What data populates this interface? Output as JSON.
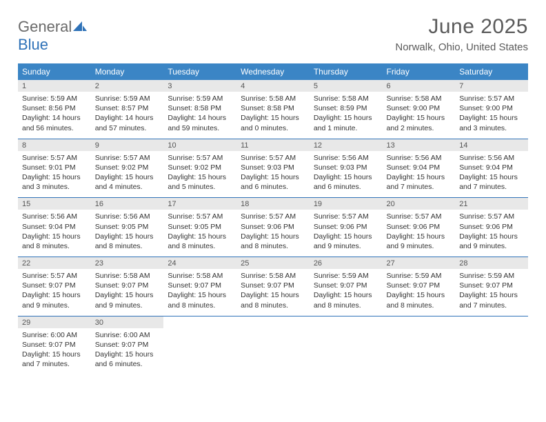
{
  "brand": {
    "part1": "General",
    "part2": "Blue"
  },
  "title": "June 2025",
  "location": "Norwalk, Ohio, United States",
  "colors": {
    "header_bg": "#3b85c5",
    "header_text": "#ffffff",
    "daynum_bg": "#e8e8e8",
    "sep": "#2f72b8",
    "brand_gray": "#6a6a6a",
    "brand_blue": "#2f72b8"
  },
  "typography": {
    "title_fontsize": 30,
    "location_fontsize": 15,
    "dayheader_fontsize": 12,
    "daynum_fontsize": 11,
    "detail_fontsize": 10.5
  },
  "day_headers": [
    "Sunday",
    "Monday",
    "Tuesday",
    "Wednesday",
    "Thursday",
    "Friday",
    "Saturday"
  ],
  "weeks": [
    [
      {
        "n": "1",
        "sr": "5:59 AM",
        "ss": "8:56 PM",
        "dl": "14 hours and 56 minutes."
      },
      {
        "n": "2",
        "sr": "5:59 AM",
        "ss": "8:57 PM",
        "dl": "14 hours and 57 minutes."
      },
      {
        "n": "3",
        "sr": "5:59 AM",
        "ss": "8:58 PM",
        "dl": "14 hours and 59 minutes."
      },
      {
        "n": "4",
        "sr": "5:58 AM",
        "ss": "8:58 PM",
        "dl": "15 hours and 0 minutes."
      },
      {
        "n": "5",
        "sr": "5:58 AM",
        "ss": "8:59 PM",
        "dl": "15 hours and 1 minute."
      },
      {
        "n": "6",
        "sr": "5:58 AM",
        "ss": "9:00 PM",
        "dl": "15 hours and 2 minutes."
      },
      {
        "n": "7",
        "sr": "5:57 AM",
        "ss": "9:00 PM",
        "dl": "15 hours and 3 minutes."
      }
    ],
    [
      {
        "n": "8",
        "sr": "5:57 AM",
        "ss": "9:01 PM",
        "dl": "15 hours and 3 minutes."
      },
      {
        "n": "9",
        "sr": "5:57 AM",
        "ss": "9:02 PM",
        "dl": "15 hours and 4 minutes."
      },
      {
        "n": "10",
        "sr": "5:57 AM",
        "ss": "9:02 PM",
        "dl": "15 hours and 5 minutes."
      },
      {
        "n": "11",
        "sr": "5:57 AM",
        "ss": "9:03 PM",
        "dl": "15 hours and 6 minutes."
      },
      {
        "n": "12",
        "sr": "5:56 AM",
        "ss": "9:03 PM",
        "dl": "15 hours and 6 minutes."
      },
      {
        "n": "13",
        "sr": "5:56 AM",
        "ss": "9:04 PM",
        "dl": "15 hours and 7 minutes."
      },
      {
        "n": "14",
        "sr": "5:56 AM",
        "ss": "9:04 PM",
        "dl": "15 hours and 7 minutes."
      }
    ],
    [
      {
        "n": "15",
        "sr": "5:56 AM",
        "ss": "9:04 PM",
        "dl": "15 hours and 8 minutes."
      },
      {
        "n": "16",
        "sr": "5:56 AM",
        "ss": "9:05 PM",
        "dl": "15 hours and 8 minutes."
      },
      {
        "n": "17",
        "sr": "5:57 AM",
        "ss": "9:05 PM",
        "dl": "15 hours and 8 minutes."
      },
      {
        "n": "18",
        "sr": "5:57 AM",
        "ss": "9:06 PM",
        "dl": "15 hours and 8 minutes."
      },
      {
        "n": "19",
        "sr": "5:57 AM",
        "ss": "9:06 PM",
        "dl": "15 hours and 9 minutes."
      },
      {
        "n": "20",
        "sr": "5:57 AM",
        "ss": "9:06 PM",
        "dl": "15 hours and 9 minutes."
      },
      {
        "n": "21",
        "sr": "5:57 AM",
        "ss": "9:06 PM",
        "dl": "15 hours and 9 minutes."
      }
    ],
    [
      {
        "n": "22",
        "sr": "5:57 AM",
        "ss": "9:07 PM",
        "dl": "15 hours and 9 minutes."
      },
      {
        "n": "23",
        "sr": "5:58 AM",
        "ss": "9:07 PM",
        "dl": "15 hours and 9 minutes."
      },
      {
        "n": "24",
        "sr": "5:58 AM",
        "ss": "9:07 PM",
        "dl": "15 hours and 8 minutes."
      },
      {
        "n": "25",
        "sr": "5:58 AM",
        "ss": "9:07 PM",
        "dl": "15 hours and 8 minutes."
      },
      {
        "n": "26",
        "sr": "5:59 AM",
        "ss": "9:07 PM",
        "dl": "15 hours and 8 minutes."
      },
      {
        "n": "27",
        "sr": "5:59 AM",
        "ss": "9:07 PM",
        "dl": "15 hours and 8 minutes."
      },
      {
        "n": "28",
        "sr": "5:59 AM",
        "ss": "9:07 PM",
        "dl": "15 hours and 7 minutes."
      }
    ],
    [
      {
        "n": "29",
        "sr": "6:00 AM",
        "ss": "9:07 PM",
        "dl": "15 hours and 7 minutes."
      },
      {
        "n": "30",
        "sr": "6:00 AM",
        "ss": "9:07 PM",
        "dl": "15 hours and 6 minutes."
      },
      null,
      null,
      null,
      null,
      null
    ]
  ],
  "labels": {
    "sunrise": "Sunrise: ",
    "sunset": "Sunset: ",
    "daylight": "Daylight: "
  }
}
